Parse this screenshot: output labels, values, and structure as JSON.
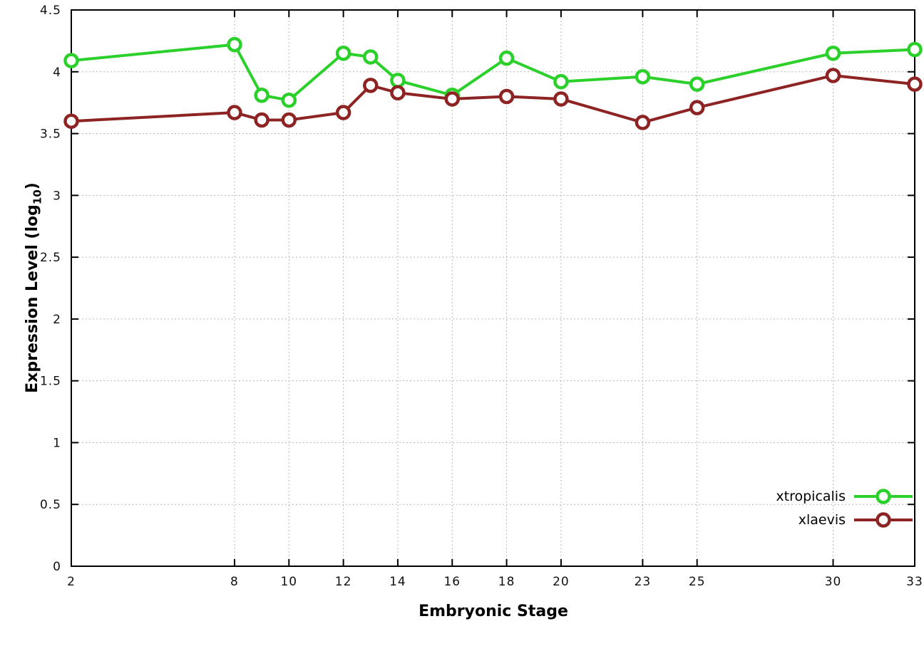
{
  "chart_data": {
    "type": "line",
    "title": "",
    "xlabel": "Embryonic Stage",
    "ylabel": "Expression Level (log10)",
    "ylabel_parts": {
      "main": "Expression Level (log",
      "sub": "10",
      "close": ")"
    },
    "xlim": [
      2,
      33
    ],
    "ylim": [
      0,
      4.5
    ],
    "x_ticks": [
      2,
      8,
      10,
      12,
      14,
      16,
      18,
      20,
      23,
      25,
      30,
      33
    ],
    "y_ticks": [
      0,
      0.5,
      1,
      1.5,
      2,
      2.5,
      3,
      3.5,
      4,
      4.5
    ],
    "grid": true,
    "legend_position": "bottom-right",
    "x": [
      2,
      8,
      9,
      10,
      12,
      13,
      14,
      16,
      18,
      20,
      23,
      25,
      30,
      33
    ],
    "series": [
      {
        "name": "xtropicalis",
        "color": "#2bd02b",
        "values": [
          4.09,
          4.22,
          3.81,
          3.77,
          4.15,
          4.12,
          3.93,
          3.81,
          4.11,
          3.92,
          3.96,
          3.9,
          4.15,
          4.18
        ]
      },
      {
        "name": "xlaevis",
        "color": "#8e2323",
        "values": [
          3.6,
          3.67,
          3.61,
          3.61,
          3.67,
          3.89,
          3.83,
          3.78,
          3.8,
          3.78,
          3.59,
          3.71,
          3.97,
          3.9
        ]
      }
    ]
  }
}
